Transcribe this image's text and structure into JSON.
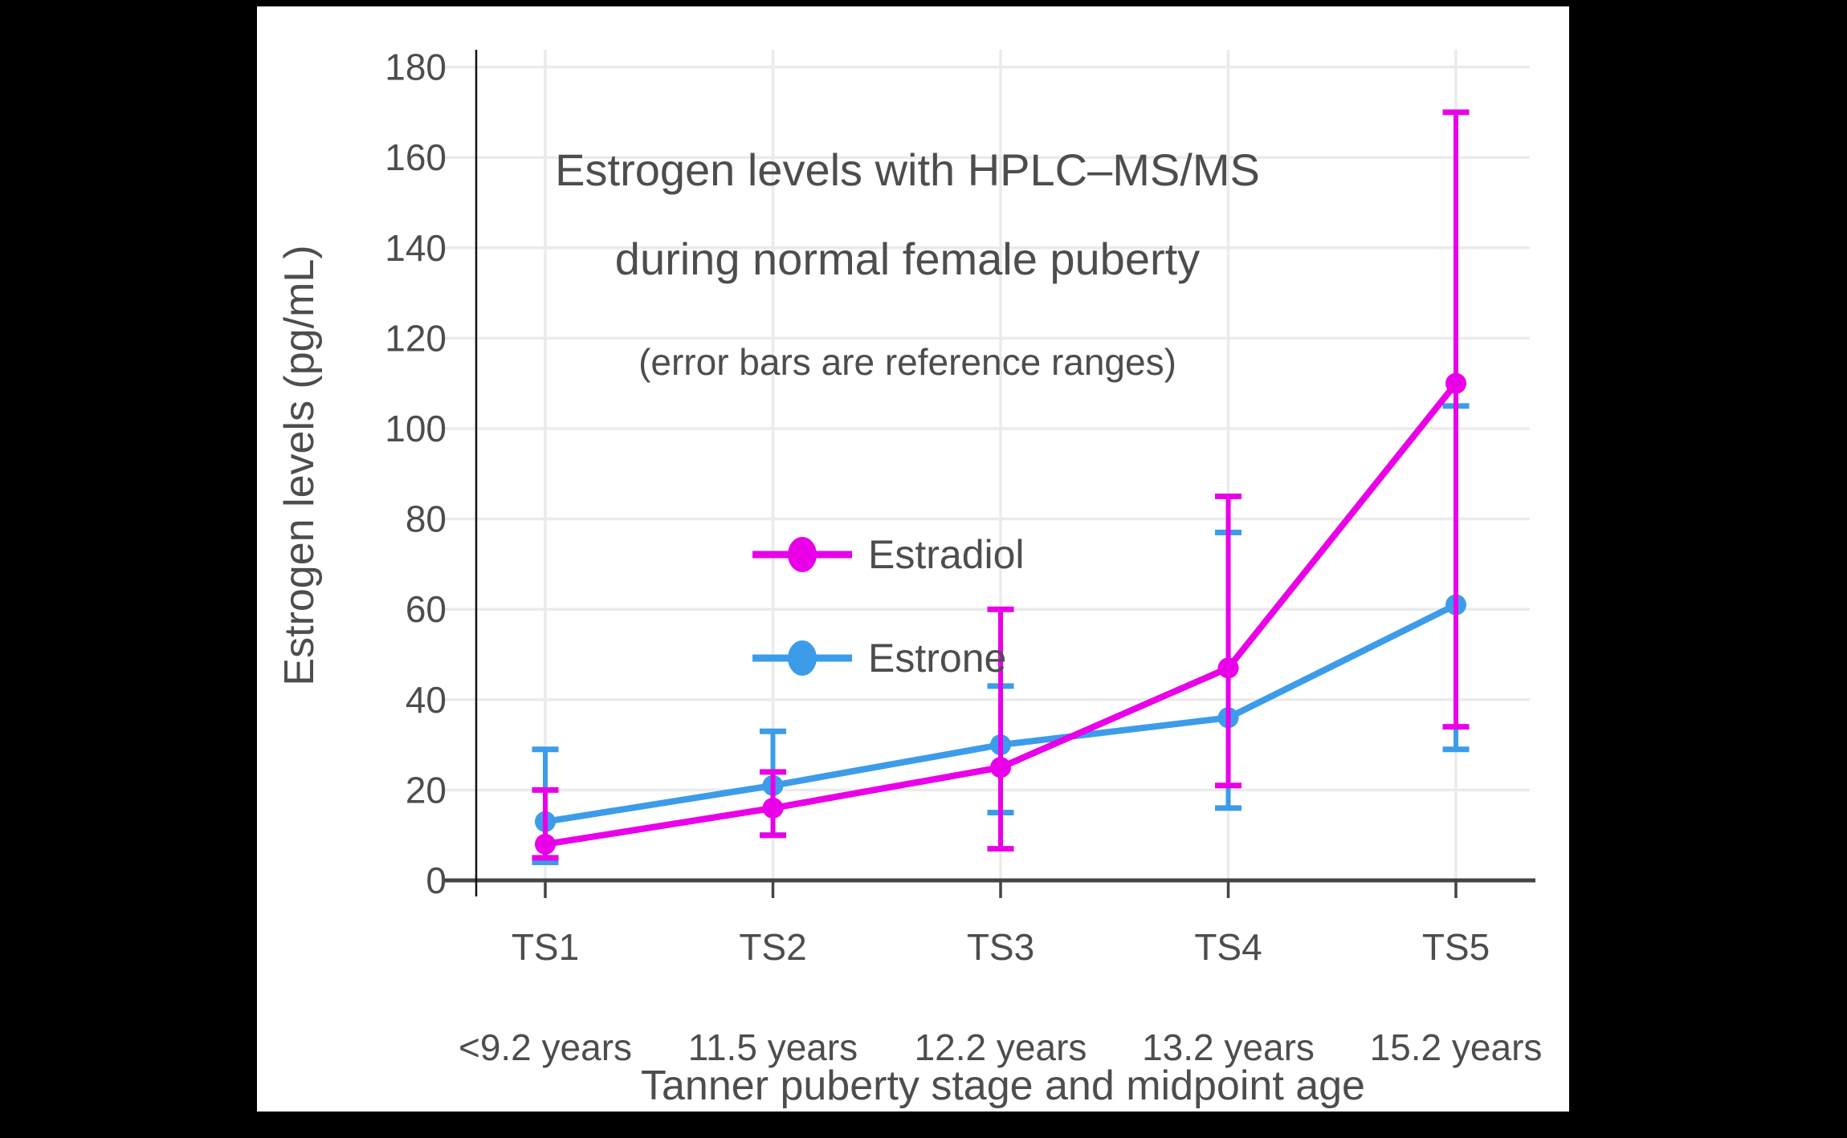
{
  "figure": {
    "background_color": "#000000",
    "canvas_color": "#ffffff",
    "gridline_color": "#ebebeb",
    "x_axis_line_color": "#444444",
    "y_axis_line_color": "#111111",
    "text_color": "#4d4d4d"
  },
  "chart_data": {
    "type": "line",
    "title_lines": [
      "Estrogen levels with HPLC–MS/MS",
      "during normal female puberty"
    ],
    "subtitle": "(error bars are reference ranges)",
    "xlabel": "Tanner puberty stage and midpoint age",
    "ylabel": "Estrogen levels (pg/mL)",
    "grid": true,
    "legend_position": "inside-upper-center",
    "categories": [
      {
        "stage": "TS1",
        "age": "<9.2 years"
      },
      {
        "stage": "TS2",
        "age": "11.5 years"
      },
      {
        "stage": "TS3",
        "age": "12.2 years"
      },
      {
        "stage": "TS4",
        "age": "13.2 years"
      },
      {
        "stage": "TS5",
        "age": "15.2 years"
      }
    ],
    "y_ticks": [
      0,
      20,
      40,
      60,
      80,
      100,
      120,
      140,
      160,
      180
    ],
    "ylim": [
      0,
      184
    ],
    "units": "pg/mL",
    "error_bars_meaning": "reference ranges",
    "series": [
      {
        "name": "Estrone",
        "color": "#3c9ce9",
        "values": [
          13,
          21,
          30,
          36,
          61
        ],
        "error_low": [
          4,
          10,
          15,
          16,
          29
        ],
        "error_high": [
          29,
          33,
          43,
          77,
          105
        ]
      },
      {
        "name": "Estradiol",
        "color": "#e900e9",
        "values": [
          8,
          16,
          25,
          47,
          110
        ],
        "error_low": [
          5,
          10,
          7,
          21,
          34
        ],
        "error_high": [
          20,
          24,
          60,
          85,
          170
        ]
      }
    ]
  }
}
